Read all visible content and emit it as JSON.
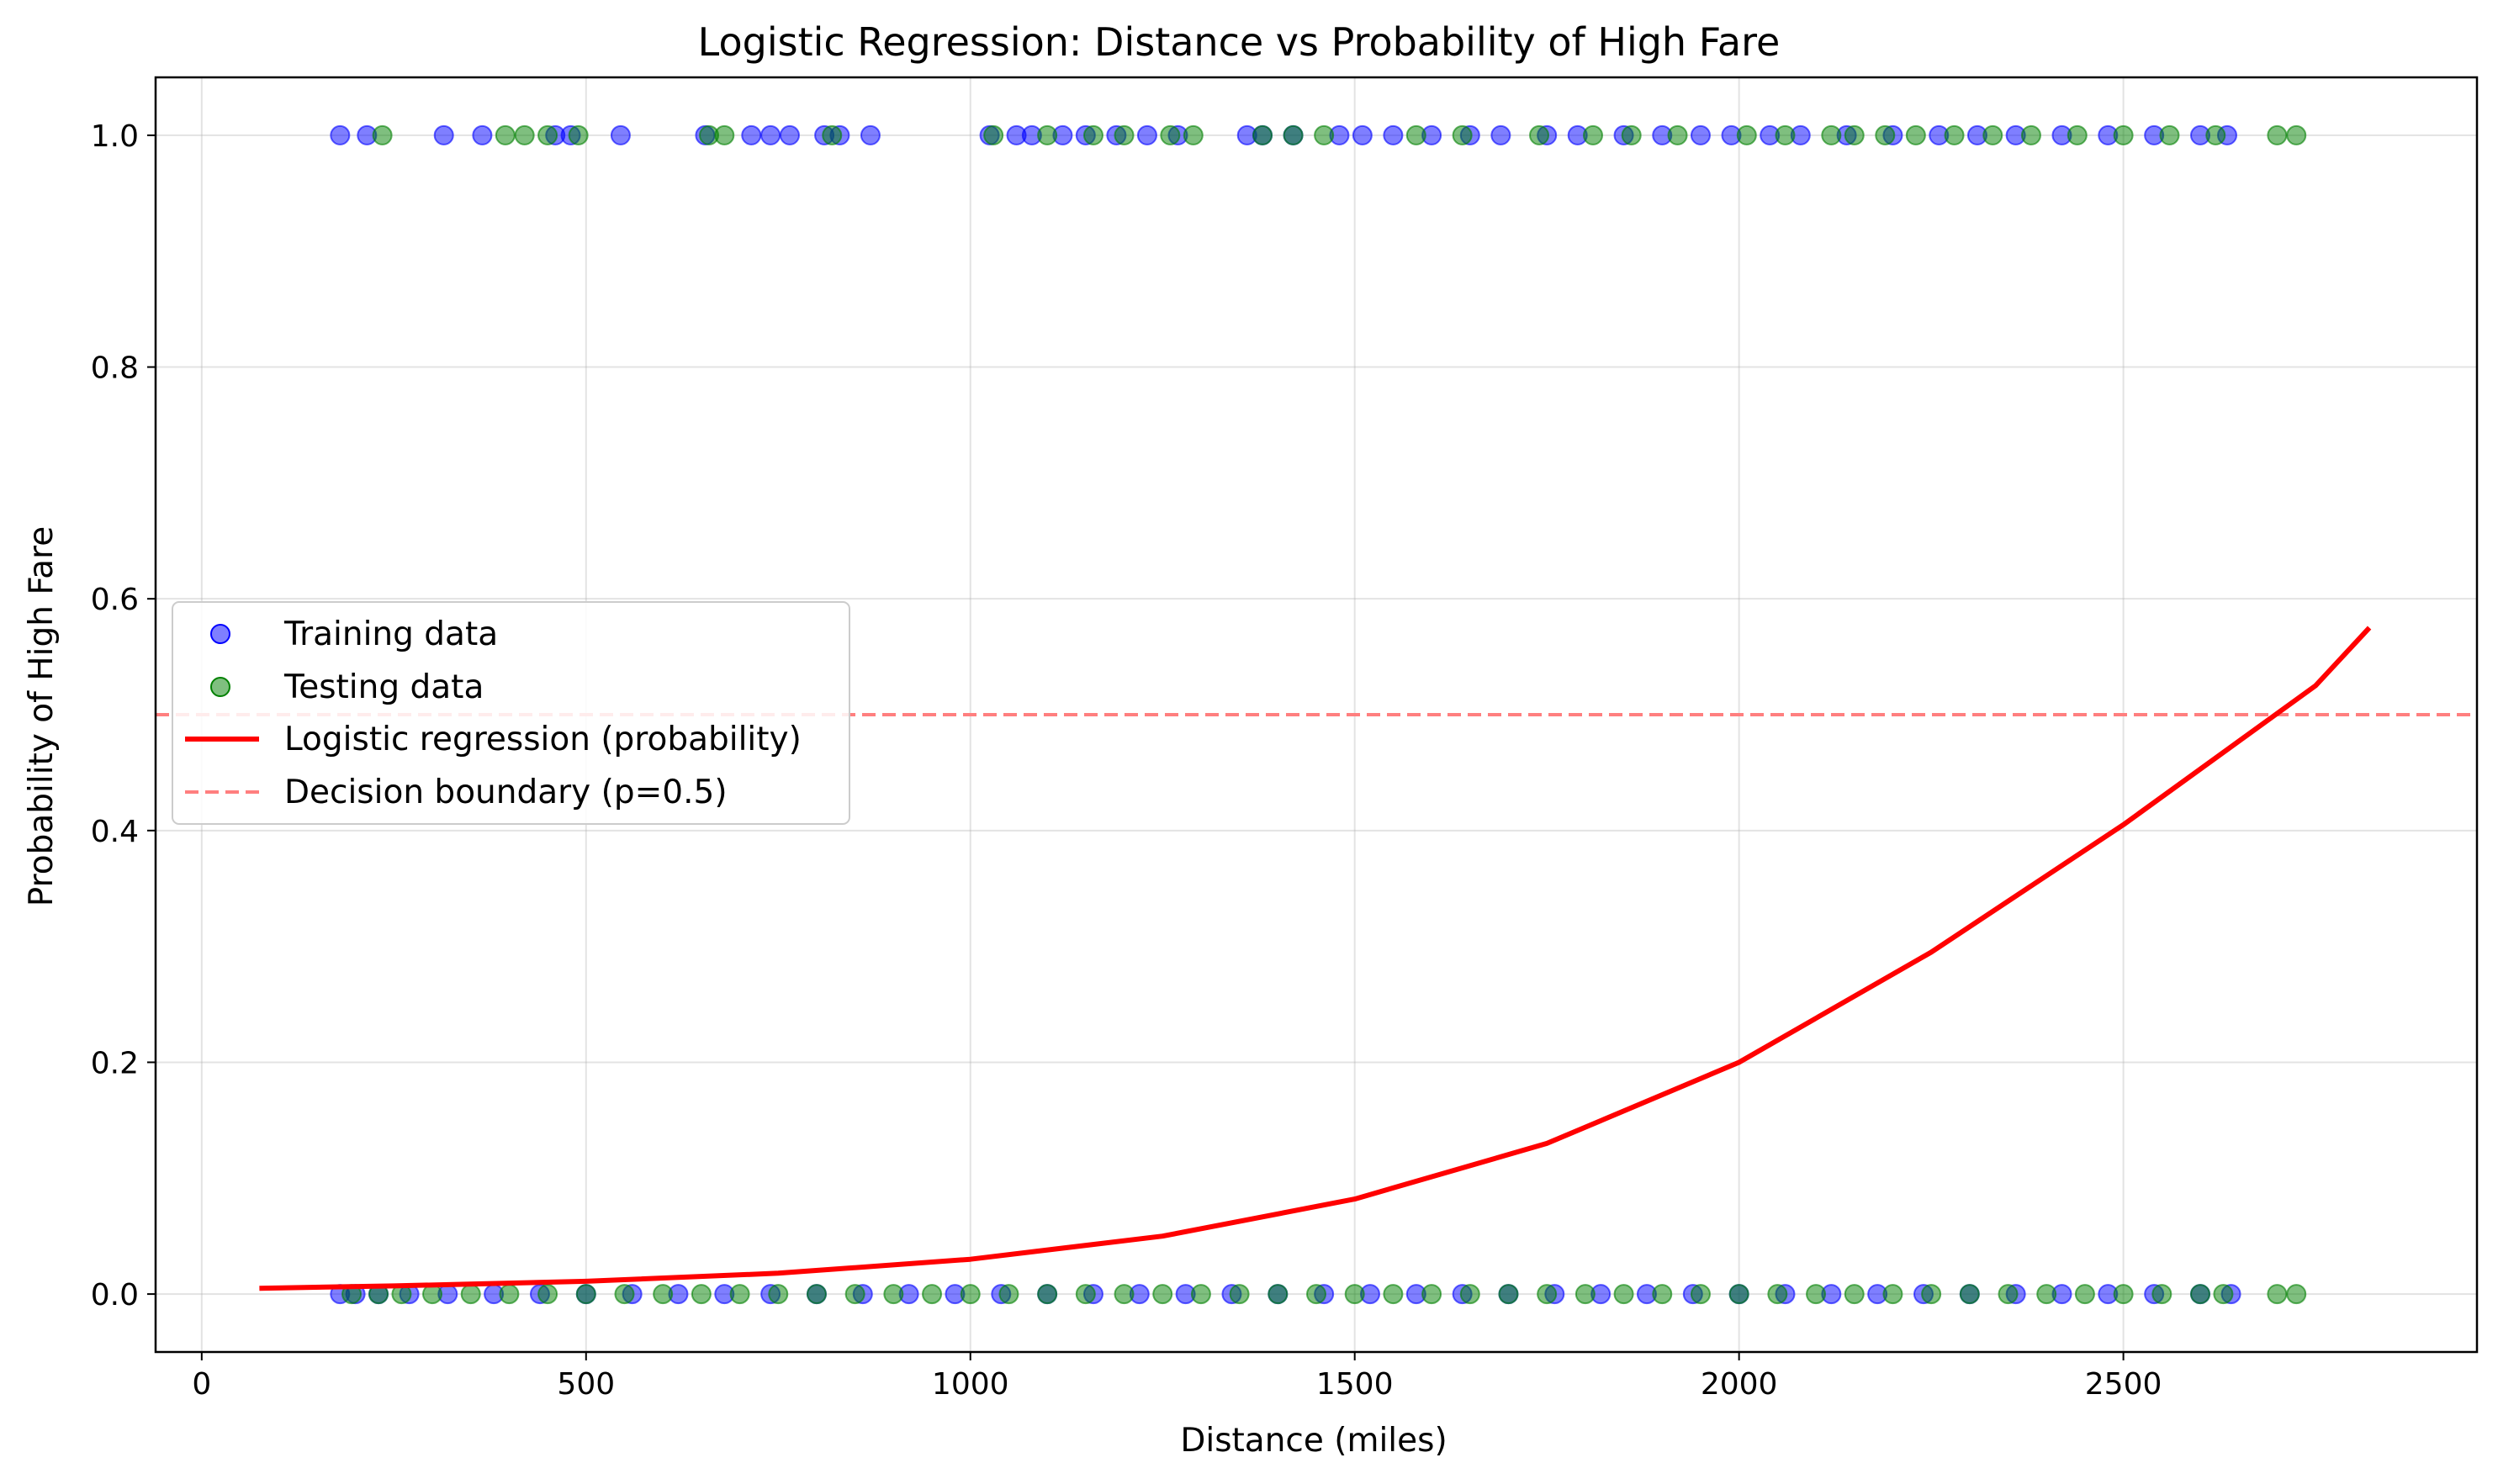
{
  "chart_data": {
    "type": "scatter",
    "title": "Logistic Regression: Distance vs Probability of High Fare",
    "xlabel": "Distance (miles)",
    "ylabel": "Probability of High Fare",
    "xlim": [
      -60,
      2960
    ],
    "ylim": [
      -0.05,
      1.05
    ],
    "xticks": [
      0,
      500,
      1000,
      1500,
      2000,
      2500
    ],
    "xtick_labels": [
      "0",
      "500",
      "1000",
      "1500",
      "2000",
      "2500"
    ],
    "yticks": [
      0.0,
      0.2,
      0.4,
      0.6,
      0.8,
      1.0
    ],
    "ytick_labels": [
      "0.0",
      "0.2",
      "0.4",
      "0.6",
      "0.8",
      "1.0"
    ],
    "grid": true,
    "legend_position": "center-left",
    "colors": {
      "training": "#0000ff",
      "testing": "#008000",
      "regression": "#ff0000",
      "boundary": "#ff7f7f"
    },
    "series": [
      {
        "name": "Training data",
        "kind": "scatter",
        "x": [
          180,
          215,
          315,
          365,
          460,
          480,
          545,
          655,
          715,
          740,
          765,
          810,
          830,
          870,
          1025,
          1060,
          1080,
          1120,
          1150,
          1190,
          1230,
          1270,
          1360,
          1380,
          1420,
          1480,
          1510,
          1550,
          1600,
          1650,
          1690,
          1750,
          1790,
          1850,
          1900,
          1950,
          1990,
          2040,
          2080,
          2140,
          2200,
          2260,
          2310,
          2360,
          2420,
          2480,
          2540,
          2600,
          2635,
          180,
          200,
          230,
          270,
          320,
          380,
          440,
          500,
          560,
          620,
          680,
          740,
          800,
          860,
          920,
          980,
          1040,
          1100,
          1160,
          1220,
          1280,
          1340,
          1400,
          1460,
          1520,
          1580,
          1640,
          1700,
          1760,
          1820,
          1880,
          1940,
          2000,
          2060,
          2120,
          2180,
          2240,
          2300,
          2360,
          2420,
          2480,
          2540,
          2600,
          2640
        ],
        "y": [
          1,
          1,
          1,
          1,
          1,
          1,
          1,
          1,
          1,
          1,
          1,
          1,
          1,
          1,
          1,
          1,
          1,
          1,
          1,
          1,
          1,
          1,
          1,
          1,
          1,
          1,
          1,
          1,
          1,
          1,
          1,
          1,
          1,
          1,
          1,
          1,
          1,
          1,
          1,
          1,
          1,
          1,
          1,
          1,
          1,
          1,
          1,
          1,
          1,
          0,
          0,
          0,
          0,
          0,
          0,
          0,
          0,
          0,
          0,
          0,
          0,
          0,
          0,
          0,
          0,
          0,
          0,
          0,
          0,
          0,
          0,
          0,
          0,
          0,
          0,
          0,
          0,
          0,
          0,
          0,
          0,
          0,
          0,
          0,
          0,
          0,
          0,
          0,
          0,
          0,
          0,
          0,
          0
        ]
      },
      {
        "name": "Testing data",
        "kind": "scatter",
        "x": [
          235,
          395,
          420,
          450,
          490,
          660,
          680,
          820,
          1030,
          1100,
          1160,
          1200,
          1260,
          1290,
          1380,
          1420,
          1460,
          1580,
          1640,
          1740,
          1810,
          1860,
          1920,
          2010,
          2060,
          2120,
          2150,
          2190,
          2230,
          2280,
          2330,
          2380,
          2440,
          2500,
          2560,
          2620,
          2700,
          2725,
          195,
          230,
          260,
          300,
          350,
          400,
          450,
          500,
          550,
          600,
          650,
          700,
          750,
          800,
          850,
          900,
          950,
          1000,
          1050,
          1100,
          1150,
          1200,
          1250,
          1300,
          1350,
          1400,
          1450,
          1500,
          1550,
          1600,
          1650,
          1700,
          1750,
          1800,
          1850,
          1900,
          1950,
          2000,
          2050,
          2100,
          2150,
          2200,
          2250,
          2300,
          2350,
          2400,
          2450,
          2500,
          2550,
          2600,
          2630,
          2700,
          2725
        ],
        "y": [
          1,
          1,
          1,
          1,
          1,
          1,
          1,
          1,
          1,
          1,
          1,
          1,
          1,
          1,
          1,
          1,
          1,
          1,
          1,
          1,
          1,
          1,
          1,
          1,
          1,
          1,
          1,
          1,
          1,
          1,
          1,
          1,
          1,
          1,
          1,
          1,
          1,
          1,
          0,
          0,
          0,
          0,
          0,
          0,
          0,
          0,
          0,
          0,
          0,
          0,
          0,
          0,
          0,
          0,
          0,
          0,
          0,
          0,
          0,
          0,
          0,
          0,
          0,
          0,
          0,
          0,
          0,
          0,
          0,
          0,
          0,
          0,
          0,
          0,
          0,
          0,
          0,
          0,
          0,
          0,
          0,
          0,
          0,
          0,
          0,
          0,
          0,
          0,
          0,
          0,
          0
        ]
      },
      {
        "name": "Logistic regression (probability)",
        "kind": "line",
        "x": [
          75,
          250,
          500,
          750,
          1000,
          1250,
          1500,
          1750,
          2000,
          2250,
          2500,
          2750,
          2820
        ],
        "y": [
          0.005,
          0.007,
          0.011,
          0.018,
          0.03,
          0.05,
          0.082,
          0.13,
          0.2,
          0.295,
          0.405,
          0.525,
          0.575
        ]
      },
      {
        "name": "Decision boundary (p=0.5)",
        "kind": "hline",
        "y": 0.5
      }
    ]
  }
}
